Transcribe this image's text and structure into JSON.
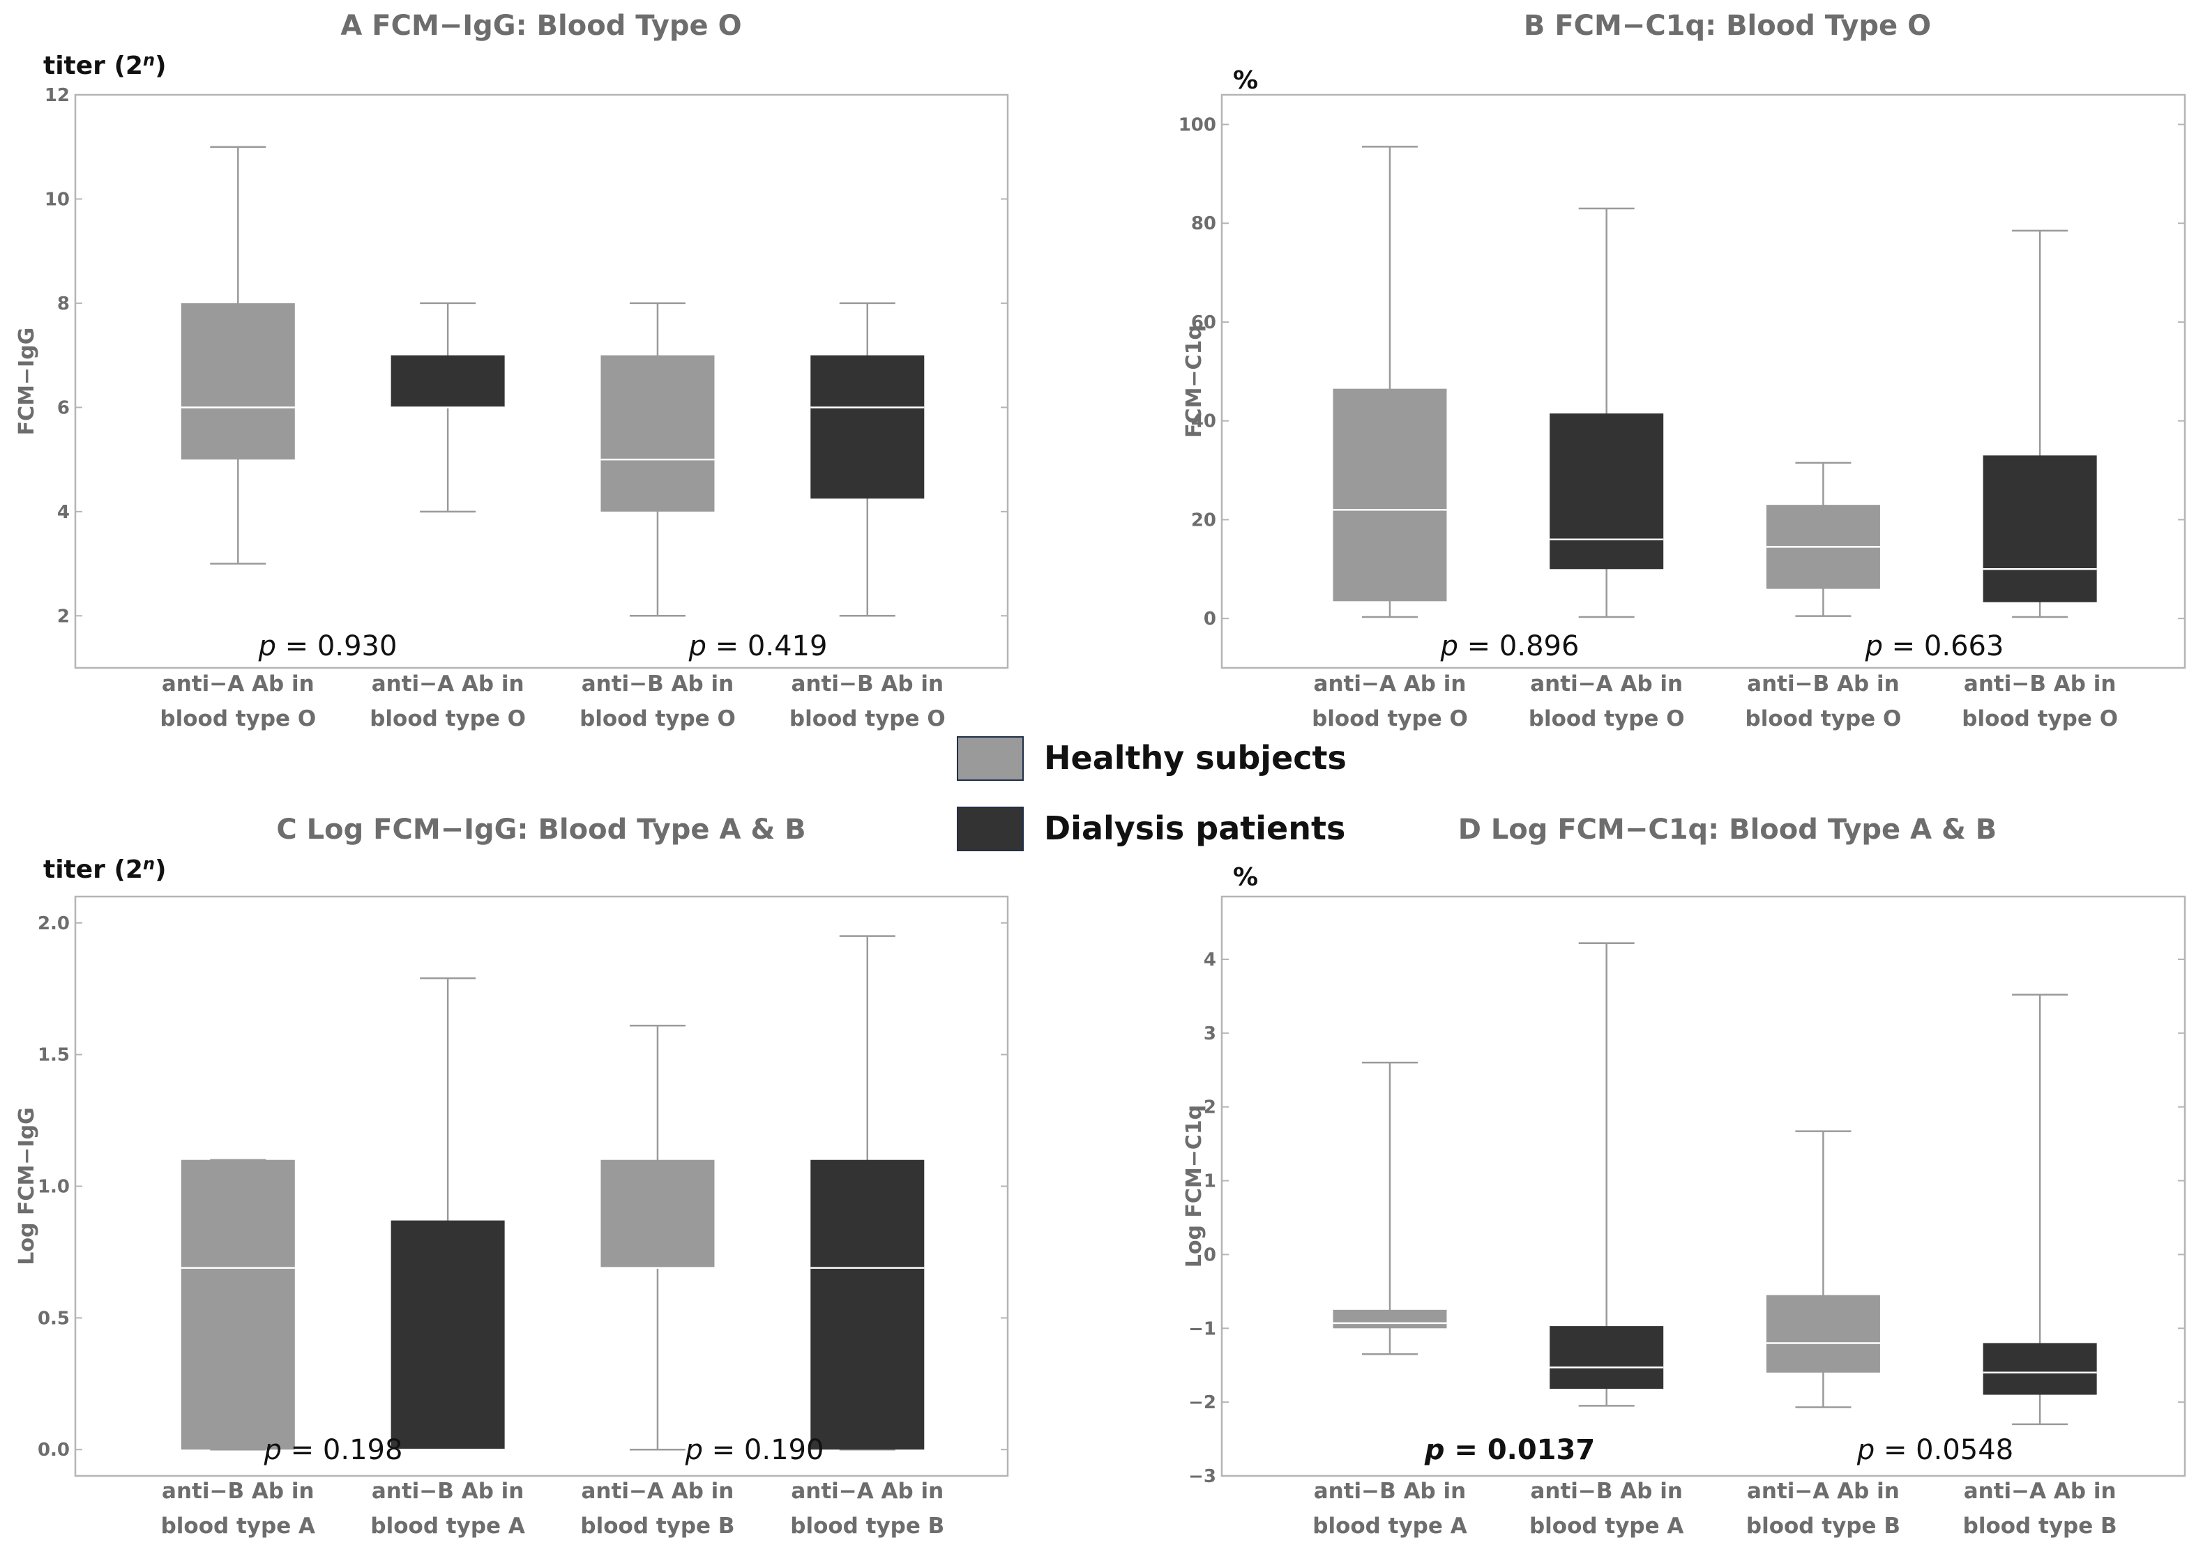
{
  "colors": {
    "healthy": "#9a9a9a",
    "dialysis": "#333333",
    "whisker": "#9a9a9a",
    "frame": "#b5b5b5",
    "median_line": "#ffffff"
  },
  "legend": {
    "items": [
      {
        "label": "Healthy subjects",
        "color": "#9a9a9a"
      },
      {
        "label": "Dialysis patients",
        "color": "#333333"
      }
    ]
  },
  "chart_data": [
    {
      "type": "box",
      "panel": "A",
      "title": "FCM−IgG: Blood Type O",
      "unit_prefix": "titer (2",
      "unit_exp": "n",
      "unit_suffix": ")",
      "ylabel": "FCM−IgG",
      "ylim": [
        1,
        12
      ],
      "ticks": [
        2,
        4,
        6,
        8,
        10,
        12
      ],
      "tick_labels": [
        "2",
        "4",
        "6",
        "8",
        "10",
        "12"
      ],
      "categories": [
        [
          "anti−A Ab in",
          "blood type O"
        ],
        [
          "anti−A Ab in",
          "blood type O"
        ],
        [
          "anti−B Ab in",
          "blood type O"
        ],
        [
          "anti−B Ab in",
          "blood type O"
        ]
      ],
      "groups": [
        "healthy",
        "dialysis",
        "healthy",
        "dialysis"
      ],
      "boxes": [
        {
          "min": 3,
          "q1": 5,
          "median": 6,
          "q3": 8,
          "max": 11
        },
        {
          "min": 4,
          "q1": 6,
          "median": 6,
          "q3": 7,
          "max": 8
        },
        {
          "min": 2,
          "q1": 4,
          "median": 5,
          "q3": 7,
          "max": 8
        },
        {
          "min": 2,
          "q1": 4.25,
          "median": 6,
          "q3": 7,
          "max": 8
        }
      ],
      "pvalues": [
        {
          "prefix": "p",
          "text": " = 0.930",
          "bold": false
        },
        {
          "prefix": "p",
          "text": " = 0.419",
          "bold": false
        }
      ]
    },
    {
      "type": "box",
      "panel": "B",
      "title": "FCM−C1q: Blood Type O",
      "unit_prefix": "%",
      "unit_exp": "",
      "unit_suffix": "",
      "ylabel": "FCM−C1q",
      "ylim": [
        -10,
        106
      ],
      "ticks": [
        0,
        20,
        40,
        60,
        80,
        100
      ],
      "tick_labels": [
        "0",
        "20",
        "40",
        "60",
        "80",
        "100"
      ],
      "categories": [
        [
          "anti−A Ab in",
          "blood type O"
        ],
        [
          "anti−A Ab in",
          "blood type O"
        ],
        [
          "anti−B Ab in",
          "blood type O"
        ],
        [
          "anti−B Ab in",
          "blood type O"
        ]
      ],
      "groups": [
        "healthy",
        "dialysis",
        "healthy",
        "dialysis"
      ],
      "boxes": [
        {
          "min": 0.3,
          "q1": 3.5,
          "median": 22,
          "q3": 46.5,
          "max": 95.5
        },
        {
          "min": 0.3,
          "q1": 10,
          "median": 16,
          "q3": 41.5,
          "max": 83
        },
        {
          "min": 0.5,
          "q1": 6,
          "median": 14.5,
          "q3": 23,
          "max": 31.5
        },
        {
          "min": 0.3,
          "q1": 3.3,
          "median": 10,
          "q3": 33,
          "max": 78.5
        }
      ],
      "pvalues": [
        {
          "prefix": "p",
          "text": " = 0.896",
          "bold": false
        },
        {
          "prefix": "p",
          "text": " = 0.663",
          "bold": false
        }
      ]
    },
    {
      "type": "box",
      "panel": "C",
      "title": "Log FCM−IgG: Blood Type A & B",
      "unit_prefix": "titer (2",
      "unit_exp": "n",
      "unit_suffix": ")",
      "ylabel": "Log FCM−IgG",
      "ylim": [
        -0.1,
        2.1
      ],
      "ticks": [
        0.0,
        0.5,
        1.0,
        1.5,
        2.0
      ],
      "tick_labels": [
        "0.0",
        "0.5",
        "1.0",
        "1.5",
        "2.0"
      ],
      "categories": [
        [
          "anti−B Ab in",
          "blood type A"
        ],
        [
          "anti−B Ab in",
          "blood type A"
        ],
        [
          "anti−A Ab in",
          "blood type B"
        ],
        [
          "anti−A Ab in",
          "blood type B"
        ]
      ],
      "groups": [
        "healthy",
        "dialysis",
        "healthy",
        "dialysis"
      ],
      "boxes": [
        {
          "min": 0,
          "q1": 0,
          "median": 0.69,
          "q3": 1.1,
          "max": 1.1
        },
        {
          "min": 0,
          "q1": 0,
          "median": 0,
          "q3": 0.87,
          "max": 1.79
        },
        {
          "min": 0,
          "q1": 0.69,
          "median": 0.69,
          "q3": 1.1,
          "max": 1.61
        },
        {
          "min": 0,
          "q1": 0,
          "median": 0.69,
          "q3": 1.1,
          "max": 1.95
        }
      ],
      "pvalues": [
        {
          "prefix": "p",
          "text": " = 0.198",
          "bold": false
        },
        {
          "prefix": "p",
          "text": " = 0.190",
          "bold": false
        }
      ]
    },
    {
      "type": "box",
      "panel": "D",
      "title": "Log FCM−C1q: Blood Type A & B",
      "unit_prefix": "%",
      "unit_exp": "",
      "unit_suffix": "",
      "ylabel": "Log FCM−C1q",
      "ylim": [
        -3,
        4.85
      ],
      "ticks": [
        -3,
        -2,
        -1,
        0,
        1,
        2,
        3,
        4
      ],
      "tick_labels": [
        "−3",
        "−2",
        "−1",
        "0",
        "1",
        "2",
        "3",
        "4"
      ],
      "categories": [
        [
          "anti−B Ab in",
          "blood type A"
        ],
        [
          "anti−B Ab in",
          "blood type A"
        ],
        [
          "anti−A Ab in",
          "blood type B"
        ],
        [
          "anti−A Ab in",
          "blood type B"
        ]
      ],
      "groups": [
        "healthy",
        "dialysis",
        "healthy",
        "dialysis"
      ],
      "boxes": [
        {
          "min": -1.35,
          "q1": -1.0,
          "median": -0.93,
          "q3": -0.75,
          "max": 2.6
        },
        {
          "min": -2.05,
          "q1": -1.82,
          "median": -1.53,
          "q3": -0.97,
          "max": 4.22
        },
        {
          "min": -2.07,
          "q1": -1.6,
          "median": -1.2,
          "q3": -0.55,
          "max": 1.67
        },
        {
          "min": -2.3,
          "q1": -1.9,
          "median": -1.6,
          "q3": -1.2,
          "max": 3.52
        }
      ],
      "pvalues": [
        {
          "prefix": "p",
          "text": " = 0.0137",
          "bold": true
        },
        {
          "prefix": "p",
          "text": " = 0.0548",
          "bold": false
        }
      ]
    }
  ]
}
